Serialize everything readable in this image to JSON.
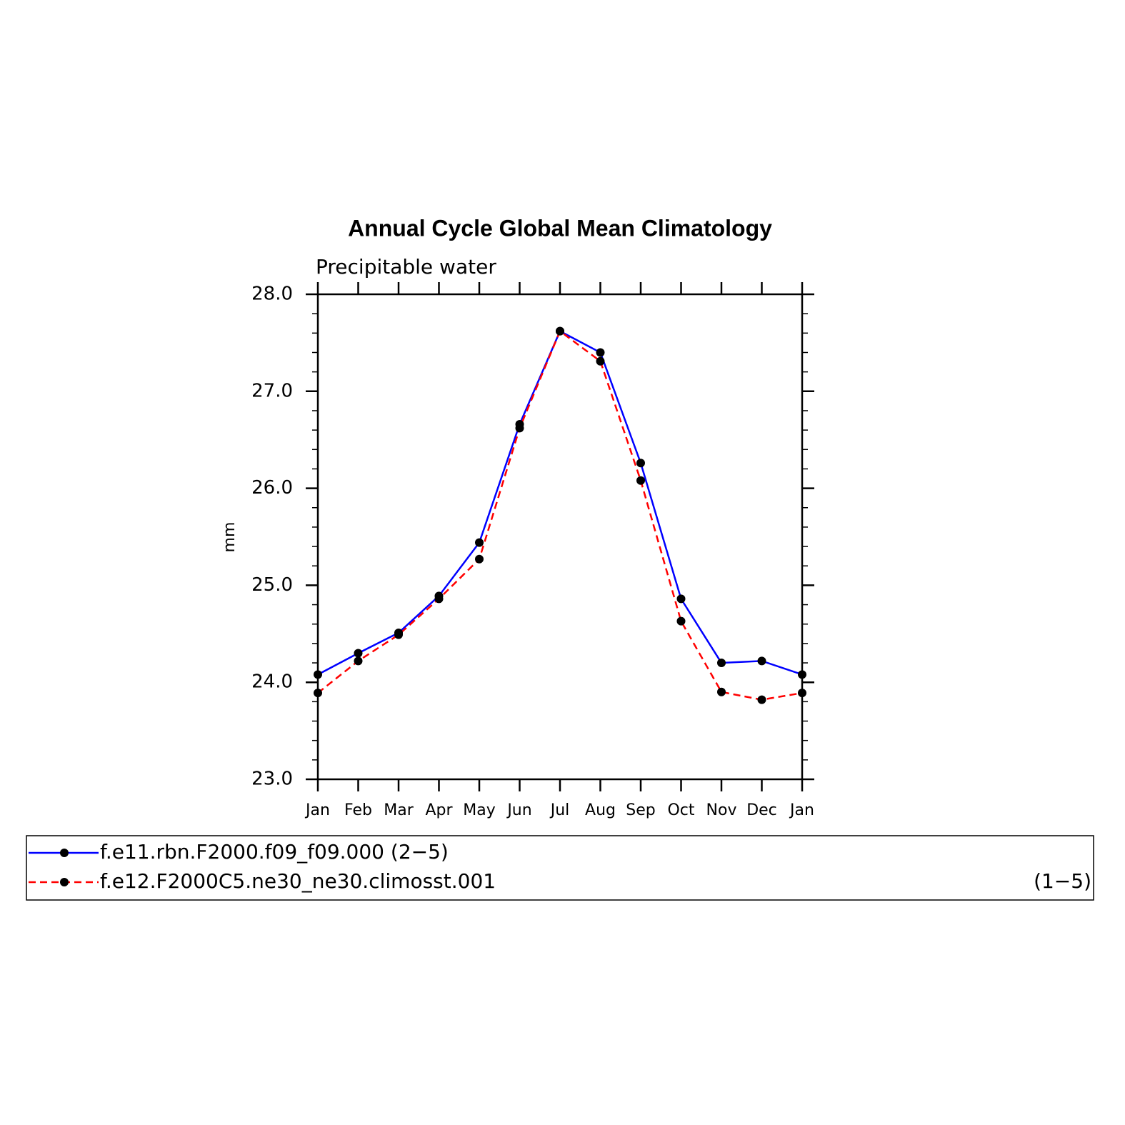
{
  "chart_data": {
    "type": "line",
    "title": "Annual Cycle Global Mean Climatology",
    "subtitle": "Precipitable water",
    "y_label": "mm",
    "categories": [
      "Jan",
      "Feb",
      "Mar",
      "Apr",
      "May",
      "Jun",
      "Jul",
      "Aug",
      "Sep",
      "Oct",
      "Nov",
      "Dec",
      "Jan"
    ],
    "ylim": [
      23,
      28
    ],
    "yticks": [
      {
        "value": 23,
        "label": "23.0"
      },
      {
        "value": 24,
        "label": "24.0"
      },
      {
        "value": 25,
        "label": "25.0"
      },
      {
        "value": 26,
        "label": "26.0"
      },
      {
        "value": 27,
        "label": "27.0"
      },
      {
        "value": 28,
        "label": "28.0"
      }
    ],
    "series": [
      {
        "name": "f.e11.rbn.F2000.f09_f09.000 (2−5)",
        "color": "#0000ff",
        "dash": false,
        "values": [
          24.08,
          24.3,
          24.51,
          24.89,
          25.44,
          26.66,
          27.62,
          27.4,
          26.26,
          24.86,
          24.2,
          24.22,
          24.08
        ]
      },
      {
        "name": "f.e12.F2000C5.ne30_ne30.climosst.001",
        "name_suffix": "(1−5)",
        "color": "#ff0000",
        "dash": true,
        "values": [
          23.89,
          24.22,
          24.49,
          24.86,
          25.27,
          26.62,
          27.62,
          27.31,
          26.08,
          24.63,
          23.9,
          23.82,
          23.89
        ]
      }
    ]
  }
}
